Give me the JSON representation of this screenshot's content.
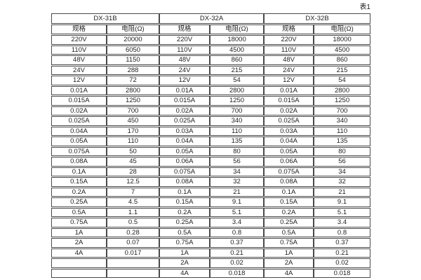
{
  "caption": "表1",
  "table": {
    "groups": [
      {
        "name": "DX-31B",
        "col_headers": [
          "规格",
          "电阻(Ω)"
        ]
      },
      {
        "name": "DX-32A",
        "col_headers": [
          "规格",
          "电阻(Ω)"
        ]
      },
      {
        "name": "DX-32B",
        "col_headers": [
          "规格",
          "电阻(Ω)"
        ]
      }
    ],
    "rows": [
      [
        "220V",
        "20000",
        "220V",
        "18000",
        "220V",
        "18000"
      ],
      [
        "110V",
        "6050",
        "110V",
        "4500",
        "110V",
        "4500"
      ],
      [
        "48V",
        "1150",
        "48V",
        "860",
        "48V",
        "860"
      ],
      [
        "24V",
        "288",
        "24V",
        "215",
        "24V",
        "215"
      ],
      [
        "12V",
        "72",
        "12V",
        "54",
        "12V",
        "54"
      ],
      [
        "0.01A",
        "2800",
        "0.01A",
        "2800",
        "0.01A",
        "2800"
      ],
      [
        "0.015A",
        "1250",
        "0.015A",
        "1250",
        "0.015A",
        "1250"
      ],
      [
        "0.02A",
        "700",
        "0.02A",
        "700",
        "0.02A",
        "700"
      ],
      [
        "0.025A",
        "450",
        "0.025A",
        "340",
        "0.025A",
        "340"
      ],
      [
        "0.04A",
        "170",
        "0.03A",
        "110",
        "0.03A",
        "110"
      ],
      [
        "0.05A",
        "110",
        "0.04A",
        "135",
        "0.04A",
        "135"
      ],
      [
        "0.075A",
        "50",
        "0.05A",
        "80",
        "0.05A",
        "80"
      ],
      [
        "0.08A",
        "45",
        "0.06A",
        "56",
        "0.06A",
        "56"
      ],
      [
        "0.1A",
        "28",
        "0.075A",
        "34",
        "0.075A",
        "34"
      ],
      [
        "0.15A",
        "12.5",
        "0.08A",
        "32",
        "0.08A",
        "32"
      ],
      [
        "0.2A",
        "7",
        "0.1A",
        "21",
        "0.1A",
        "21"
      ],
      [
        "0.25A",
        "4.5",
        "0.15A",
        "9.1",
        "0.15A",
        "9.1"
      ],
      [
        "0.5A",
        "1.1",
        "0.2A",
        "5.1",
        "0.2A",
        "5.1"
      ],
      [
        "0.75A",
        "0.5",
        "0.25A",
        "3.4",
        "0.25A",
        "3.4"
      ],
      [
        "1A",
        "0.28",
        "0.5A",
        "0.8",
        "0.5A",
        "0.8"
      ],
      [
        "2A",
        "0.07",
        "0.75A",
        "0.37",
        "0.75A",
        "0.37"
      ],
      [
        "4A",
        "0.017",
        "1A",
        "0.21",
        "1A",
        "0.21"
      ],
      [
        "",
        "",
        "2A",
        "0.02",
        "2A",
        "0.02"
      ],
      [
        "",
        "",
        "4A",
        "0.018",
        "4A",
        "0.018"
      ]
    ]
  }
}
